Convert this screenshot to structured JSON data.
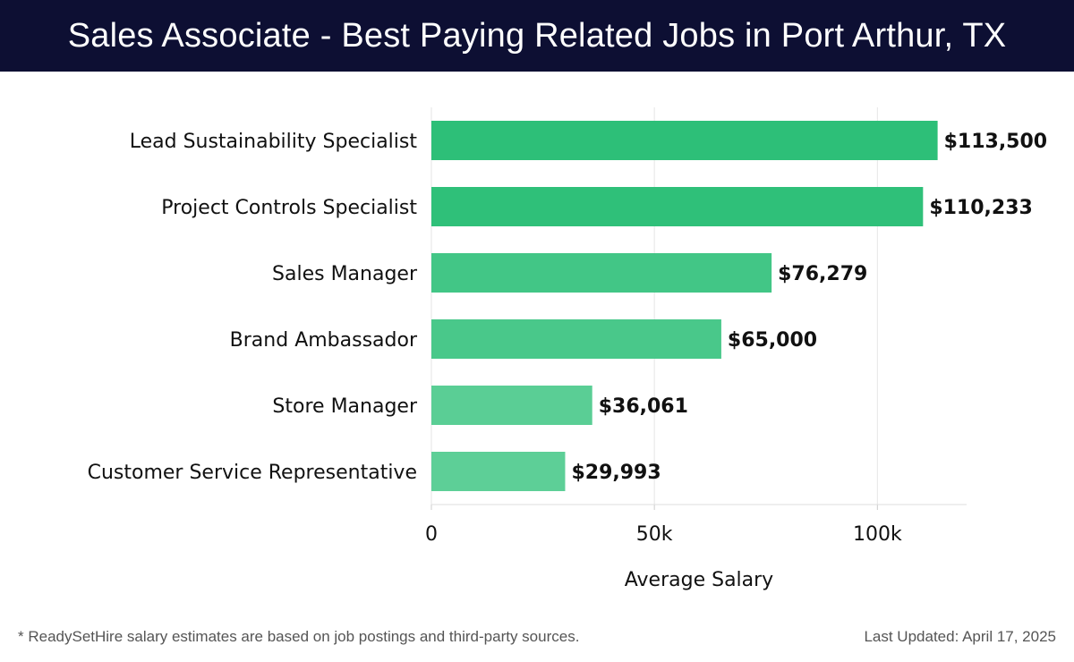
{
  "header": {
    "title": "Sales Associate - Best Paying Related Jobs in Port Arthur, TX"
  },
  "footer": {
    "note": "* ReadySetHire salary estimates are based on job postings and third-party sources.",
    "updated": "Last Updated: April 17, 2025"
  },
  "colors": {
    "header_bg": "#0d0f33",
    "bar_dark": "#2dbf78",
    "bar_light": "#5dcf97",
    "grid": "#e6e6e6"
  },
  "chart_data": {
    "type": "bar",
    "orientation": "horizontal",
    "categories": [
      "Lead Sustainability Specialist",
      "Project Controls Specialist",
      "Sales Manager",
      "Brand Ambassador",
      "Store Manager",
      "Customer Service Representative"
    ],
    "values": [
      113500,
      110233,
      76279,
      65000,
      36061,
      29993
    ],
    "value_labels": [
      "$113,500",
      "$110,233",
      "$76,279",
      "$65,000",
      "$36,061",
      "$29,993"
    ],
    "xlabel": "Average Salary",
    "ylabel": "",
    "xlim": [
      0,
      120000
    ],
    "xticks": [
      0,
      50000,
      100000
    ],
    "xtick_labels": [
      "0",
      "50k",
      "100k"
    ],
    "grid": true
  }
}
